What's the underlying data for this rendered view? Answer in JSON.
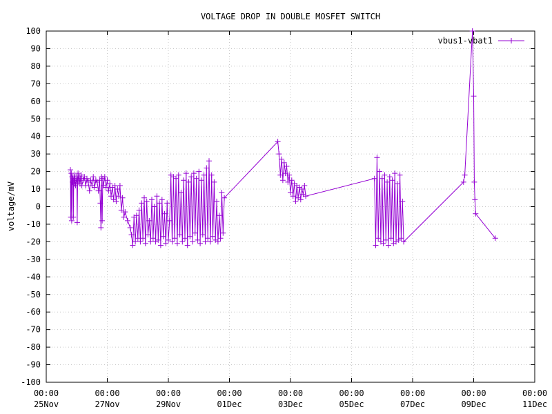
{
  "chart_data": {
    "type": "line",
    "title": "VOLTAGE DROP IN DOUBLE MOSFET SWITCH",
    "xlabel": "",
    "ylabel": "voltage/mV",
    "ylim": [
      -100,
      100
    ],
    "yticks": [
      -100,
      -90,
      -80,
      -70,
      -60,
      -50,
      -40,
      -30,
      -20,
      -10,
      0,
      10,
      20,
      30,
      40,
      50,
      60,
      70,
      80,
      90,
      100
    ],
    "xlim": [
      "2023-11-25T00:00",
      "2023-12-11T00:00"
    ],
    "xticks": [
      {
        "time": "00:00",
        "date": "25Nov"
      },
      {
        "time": "00:00",
        "date": "27Nov"
      },
      {
        "time": "00:00",
        "date": "29Nov"
      },
      {
        "time": "00:00",
        "date": "01Dec"
      },
      {
        "time": "00:00",
        "date": "03Dec"
      },
      {
        "time": "00:00",
        "date": "05Dec"
      },
      {
        "time": "00:00",
        "date": "07Dec"
      },
      {
        "time": "00:00",
        "date": "09Dec"
      },
      {
        "time": "00:00",
        "date": "11Dec"
      }
    ],
    "grid": true,
    "legend_position": "top-right",
    "series": [
      {
        "name": "vbus1-vbat1",
        "color": "#9400d3",
        "marker": "plus",
        "points": [
          [
            "2023-11-25T19:00",
            21
          ],
          [
            "2023-11-25T19:20",
            -6
          ],
          [
            "2023-11-25T19:40",
            19
          ],
          [
            "2023-11-25T20:00",
            -8
          ],
          [
            "2023-11-25T20:20",
            17
          ],
          [
            "2023-11-25T20:40",
            14
          ],
          [
            "2023-11-25T21:00",
            16
          ],
          [
            "2023-11-25T21:20",
            -6
          ],
          [
            "2023-11-25T21:40",
            15
          ],
          [
            "2023-11-25T22:00",
            18
          ],
          [
            "2023-11-25T22:20",
            13
          ],
          [
            "2023-11-25T22:40",
            16
          ],
          [
            "2023-11-25T23:00",
            12
          ],
          [
            "2023-11-26T00:00",
            17
          ],
          [
            "2023-11-26T00:20",
            -9
          ],
          [
            "2023-11-26T00:40",
            15
          ],
          [
            "2023-11-26T01:00",
            19
          ],
          [
            "2023-11-26T01:30",
            14
          ],
          [
            "2023-11-26T02:00",
            17
          ],
          [
            "2023-11-26T02:30",
            13
          ],
          [
            "2023-11-26T03:00",
            16
          ],
          [
            "2023-11-26T03:30",
            18
          ],
          [
            "2023-11-26T04:00",
            12
          ],
          [
            "2023-11-26T05:00",
            15
          ],
          [
            "2023-11-26T06:00",
            17
          ],
          [
            "2023-11-26T07:00",
            12
          ],
          [
            "2023-11-26T08:00",
            16
          ],
          [
            "2023-11-26T09:00",
            14
          ],
          [
            "2023-11-26T10:00",
            9
          ],
          [
            "2023-11-26T11:00",
            15
          ],
          [
            "2023-11-26T12:00",
            12
          ],
          [
            "2023-11-26T13:00",
            17
          ],
          [
            "2023-11-26T14:00",
            11
          ],
          [
            "2023-11-26T15:00",
            15
          ],
          [
            "2023-11-26T16:00",
            14
          ],
          [
            "2023-11-26T17:00",
            9
          ],
          [
            "2023-11-26T18:00",
            15
          ],
          [
            "2023-11-26T18:30",
            2
          ],
          [
            "2023-11-26T19:00",
            -12
          ],
          [
            "2023-11-26T19:30",
            17
          ],
          [
            "2023-11-26T20:00",
            -8
          ],
          [
            "2023-11-26T20:30",
            16
          ],
          [
            "2023-11-26T21:00",
            12
          ],
          [
            "2023-11-26T22:00",
            17
          ],
          [
            "2023-11-26T23:00",
            11
          ],
          [
            "2023-11-27T00:00",
            15
          ],
          [
            "2023-11-27T01:00",
            9
          ],
          [
            "2023-11-27T02:00",
            13
          ],
          [
            "2023-11-27T03:00",
            6
          ],
          [
            "2023-11-27T04:00",
            11
          ],
          [
            "2023-11-27T05:00",
            4
          ],
          [
            "2023-11-27T06:00",
            12
          ],
          [
            "2023-11-27T07:00",
            3
          ],
          [
            "2023-11-27T08:00",
            10
          ],
          [
            "2023-11-27T09:00",
            6
          ],
          [
            "2023-11-27T10:00",
            12
          ],
          [
            "2023-11-27T11:00",
            -2
          ],
          [
            "2023-11-27T12:00",
            5
          ],
          [
            "2023-11-27T13:00",
            -6
          ],
          [
            "2023-11-27T14:00",
            -3
          ],
          [
            "2023-11-27T16:00",
            -8
          ],
          [
            "2023-11-27T18:00",
            -12
          ],
          [
            "2023-11-27T19:00",
            -16
          ],
          [
            "2023-11-27T20:00",
            -22
          ],
          [
            "2023-11-27T21:00",
            -6
          ],
          [
            "2023-11-27T22:00",
            -20
          ],
          [
            "2023-11-27T23:00",
            -5
          ],
          [
            "2023-11-28T00:00",
            -18
          ],
          [
            "2023-11-28T01:00",
            -2
          ],
          [
            "2023-11-28T02:00",
            -20
          ],
          [
            "2023-11-28T03:00",
            2
          ],
          [
            "2023-11-28T04:00",
            -18
          ],
          [
            "2023-11-28T05:00",
            5
          ],
          [
            "2023-11-28T06:00",
            -21
          ],
          [
            "2023-11-28T07:00",
            3
          ],
          [
            "2023-11-28T08:00",
            -16
          ],
          [
            "2023-11-28T09:00",
            -8
          ],
          [
            "2023-11-28T10:00",
            -20
          ],
          [
            "2023-11-28T11:00",
            4
          ],
          [
            "2023-11-28T12:00",
            -18
          ],
          [
            "2023-11-28T13:00",
            0
          ],
          [
            "2023-11-28T14:00",
            -20
          ],
          [
            "2023-11-28T15:00",
            6
          ],
          [
            "2023-11-28T16:00",
            -19
          ],
          [
            "2023-11-28T17:00",
            2
          ],
          [
            "2023-11-28T18:00",
            -22
          ],
          [
            "2023-11-28T19:00",
            4
          ],
          [
            "2023-11-28T20:00",
            -17
          ],
          [
            "2023-11-28T21:00",
            -4
          ],
          [
            "2023-11-28T22:00",
            -21
          ],
          [
            "2023-11-28T23:00",
            2
          ],
          [
            "2023-11-29T00:00",
            -19
          ],
          [
            "2023-11-29T01:00",
            -8
          ],
          [
            "2023-11-29T02:00",
            18
          ],
          [
            "2023-11-29T03:00",
            -20
          ],
          [
            "2023-11-29T04:00",
            17
          ],
          [
            "2023-11-29T05:00",
            -18
          ],
          [
            "2023-11-29T06:00",
            16
          ],
          [
            "2023-11-29T07:00",
            -21
          ],
          [
            "2023-11-29T08:00",
            18
          ],
          [
            "2023-11-29T09:00",
            -16
          ],
          [
            "2023-11-29T10:00",
            8
          ],
          [
            "2023-11-29T11:00",
            -20
          ],
          [
            "2023-11-29T12:00",
            15
          ],
          [
            "2023-11-29T13:00",
            -18
          ],
          [
            "2023-11-29T14:00",
            19
          ],
          [
            "2023-11-29T15:00",
            -22
          ],
          [
            "2023-11-29T16:00",
            14
          ],
          [
            "2023-11-29T17:00",
            -17
          ],
          [
            "2023-11-29T18:00",
            17
          ],
          [
            "2023-11-29T19:00",
            -20
          ],
          [
            "2023-11-29T20:00",
            19
          ],
          [
            "2023-11-29T21:00",
            -15
          ],
          [
            "2023-11-29T22:00",
            16
          ],
          [
            "2023-11-29T23:00",
            -19
          ],
          [
            "2023-11-30T00:00",
            20
          ],
          [
            "2023-11-30T01:00",
            -21
          ],
          [
            "2023-11-30T02:00",
            15
          ],
          [
            "2023-11-30T03:00",
            -16
          ],
          [
            "2023-11-30T04:00",
            18
          ],
          [
            "2023-11-30T05:00",
            -20
          ],
          [
            "2023-11-30T06:00",
            22
          ],
          [
            "2023-11-30T07:00",
            -18
          ],
          [
            "2023-11-30T08:00",
            26
          ],
          [
            "2023-11-30T09:00",
            -20
          ],
          [
            "2023-11-30T10:00",
            18
          ],
          [
            "2023-11-30T11:00",
            -17
          ],
          [
            "2023-11-30T12:00",
            14
          ],
          [
            "2023-11-30T13:00",
            -19
          ],
          [
            "2023-11-30T14:00",
            3
          ],
          [
            "2023-11-30T15:00",
            -20
          ],
          [
            "2023-11-30T16:00",
            -5
          ],
          [
            "2023-11-30T17:00",
            -18
          ],
          [
            "2023-11-30T18:00",
            8
          ],
          [
            "2023-11-30T19:00",
            -15
          ],
          [
            "2023-11-30T20:00",
            5
          ],
          [
            "2023-12-02T14:00",
            37
          ],
          [
            "2023-12-02T15:00",
            30
          ],
          [
            "2023-12-02T16:00",
            18
          ],
          [
            "2023-12-02T17:00",
            27
          ],
          [
            "2023-12-02T18:00",
            15
          ],
          [
            "2023-12-02T19:00",
            25
          ],
          [
            "2023-12-02T20:00",
            19
          ],
          [
            "2023-12-02T21:00",
            23
          ],
          [
            "2023-12-02T22:00",
            14
          ],
          [
            "2023-12-02T23:00",
            18
          ],
          [
            "2023-12-03T00:00",
            8
          ],
          [
            "2023-12-03T01:00",
            15
          ],
          [
            "2023-12-03T02:00",
            6
          ],
          [
            "2023-12-03T03:00",
            13
          ],
          [
            "2023-12-03T04:00",
            3
          ],
          [
            "2023-12-03T05:00",
            12
          ],
          [
            "2023-12-03T06:00",
            5
          ],
          [
            "2023-12-03T07:00",
            11
          ],
          [
            "2023-12-03T08:00",
            4
          ],
          [
            "2023-12-03T09:00",
            10
          ],
          [
            "2023-12-03T10:00",
            7
          ],
          [
            "2023-12-03T11:00",
            12
          ],
          [
            "2023-12-03T12:00",
            6
          ],
          [
            "2023-12-05T18:00",
            16
          ],
          [
            "2023-12-05T19:00",
            -22
          ],
          [
            "2023-12-05T20:00",
            28
          ],
          [
            "2023-12-05T21:00",
            -18
          ],
          [
            "2023-12-05T22:00",
            20
          ],
          [
            "2023-12-05T23:00",
            -20
          ],
          [
            "2023-12-06T00:00",
            16
          ],
          [
            "2023-12-06T01:00",
            -21
          ],
          [
            "2023-12-06T02:00",
            18
          ],
          [
            "2023-12-06T03:00",
            -19
          ],
          [
            "2023-12-06T04:00",
            14
          ],
          [
            "2023-12-06T05:00",
            -22
          ],
          [
            "2023-12-06T06:00",
            17
          ],
          [
            "2023-12-06T07:00",
            -18
          ],
          [
            "2023-12-06T08:00",
            15
          ],
          [
            "2023-12-06T09:00",
            -21
          ],
          [
            "2023-12-06T10:00",
            19
          ],
          [
            "2023-12-06T11:00",
            -20
          ],
          [
            "2023-12-06T12:00",
            13
          ],
          [
            "2023-12-06T13:00",
            -19
          ],
          [
            "2023-12-06T14:00",
            18
          ],
          [
            "2023-12-06T15:00",
            -18
          ],
          [
            "2023-12-06T16:00",
            3
          ],
          [
            "2023-12-06T17:00",
            -20
          ],
          [
            "2023-12-08T16:00",
            14
          ],
          [
            "2023-12-08T17:00",
            18
          ],
          [
            "2023-12-08T23:00",
            100
          ],
          [
            "2023-12-09T00:00",
            63
          ],
          [
            "2023-12-09T00:30",
            14
          ],
          [
            "2023-12-09T01:00",
            4
          ],
          [
            "2023-12-09T01:30",
            -4
          ],
          [
            "2023-12-09T17:00",
            -18
          ]
        ]
      }
    ]
  }
}
